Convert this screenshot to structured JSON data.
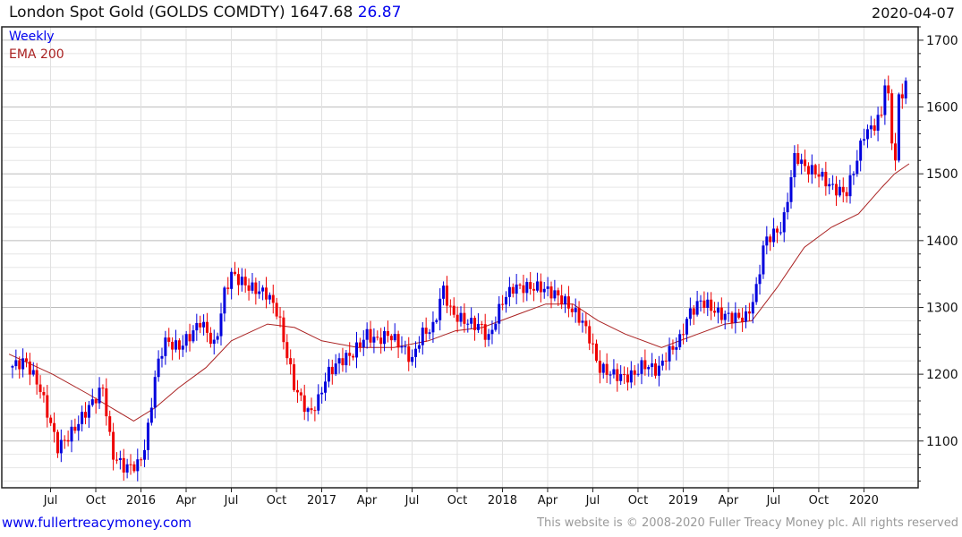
{
  "header": {
    "title": "London Spot Gold (GOLDS COMDTY) 1647.68",
    "change": "26.87",
    "date": "2020-04-07"
  },
  "footer": {
    "link": "www.fullertreacymoney.com",
    "copyright": "This website is © 2008-2020 Fuller Treacy Money plc. All rights reserved"
  },
  "colors": {
    "up": "#0000dd",
    "down": "#ee0000",
    "ema": "#aa2222",
    "legend_weekly": "#0000ee"
  },
  "chart_data": {
    "type": "candlestick",
    "title": "London Spot Gold (GOLDS COMDTY)",
    "legend": [
      "Weekly",
      "EMA 200"
    ],
    "legend_placement": "top-left",
    "xlim": [
      2015.23,
      2020.3
    ],
    "ylim": [
      1030,
      1720
    ],
    "yticks": [
      1100,
      1200,
      1300,
      1400,
      1500,
      1600,
      1700
    ],
    "xticks": [
      {
        "v": 2015.5,
        "label": "Jul"
      },
      {
        "v": 2015.75,
        "label": "Oct"
      },
      {
        "v": 2016,
        "label": "2016"
      },
      {
        "v": 2016.25,
        "label": "Apr"
      },
      {
        "v": 2016.5,
        "label": "Jul"
      },
      {
        "v": 2016.75,
        "label": "Oct"
      },
      {
        "v": 2017,
        "label": "2017"
      },
      {
        "v": 2017.25,
        "label": "Apr"
      },
      {
        "v": 2017.5,
        "label": "Jul"
      },
      {
        "v": 2017.75,
        "label": "Oct"
      },
      {
        "v": 2018,
        "label": "2018"
      },
      {
        "v": 2018.25,
        "label": "Apr"
      },
      {
        "v": 2018.5,
        "label": "Jul"
      },
      {
        "v": 2018.75,
        "label": "Oct"
      },
      {
        "v": 2019,
        "label": "2019"
      },
      {
        "v": 2019.25,
        "label": "Apr"
      },
      {
        "v": 2019.5,
        "label": "Jul"
      },
      {
        "v": 2019.75,
        "label": "Oct"
      },
      {
        "v": 2020,
        "label": "2020"
      }
    ],
    "close_path": [
      [
        2015.27,
        1210
      ],
      [
        2015.36,
        1220
      ],
      [
        2015.44,
        1180
      ],
      [
        2015.54,
        1090
      ],
      [
        2015.61,
        1110
      ],
      [
        2015.71,
        1150
      ],
      [
        2015.79,
        1180
      ],
      [
        2015.84,
        1080
      ],
      [
        2015.91,
        1060
      ],
      [
        2015.99,
        1065
      ],
      [
        2016.03,
        1100
      ],
      [
        2016.08,
        1200
      ],
      [
        2016.13,
        1250
      ],
      [
        2016.21,
        1240
      ],
      [
        2016.28,
        1260
      ],
      [
        2016.33,
        1280
      ],
      [
        2016.41,
        1240
      ],
      [
        2016.46,
        1320
      ],
      [
        2016.5,
        1350
      ],
      [
        2016.6,
        1330
      ],
      [
        2016.7,
        1320
      ],
      [
        2016.76,
        1290
      ],
      [
        2016.79,
        1250
      ],
      [
        2016.85,
        1180
      ],
      [
        2016.93,
        1140
      ],
      [
        2016.98,
        1160
      ],
      [
        2017.03,
        1200
      ],
      [
        2017.1,
        1220
      ],
      [
        2017.17,
        1230
      ],
      [
        2017.25,
        1260
      ],
      [
        2017.3,
        1250
      ],
      [
        2017.37,
        1260
      ],
      [
        2017.45,
        1240
      ],
      [
        2017.5,
        1220
      ],
      [
        2017.55,
        1260
      ],
      [
        2017.62,
        1270
      ],
      [
        2017.67,
        1330
      ],
      [
        2017.72,
        1290
      ],
      [
        2017.79,
        1280
      ],
      [
        2017.89,
        1270
      ],
      [
        2017.92,
        1250
      ],
      [
        2018.0,
        1310
      ],
      [
        2018.06,
        1330
      ],
      [
        2018.14,
        1330
      ],
      [
        2018.21,
        1330
      ],
      [
        2018.29,
        1320
      ],
      [
        2018.34,
        1310
      ],
      [
        2018.44,
        1280
      ],
      [
        2018.49,
        1250
      ],
      [
        2018.53,
        1210
      ],
      [
        2018.61,
        1200
      ],
      [
        2018.68,
        1195
      ],
      [
        2018.73,
        1200
      ],
      [
        2018.78,
        1215
      ],
      [
        2018.86,
        1205
      ],
      [
        2018.91,
        1230
      ],
      [
        2018.98,
        1250
      ],
      [
        2019.03,
        1290
      ],
      [
        2019.1,
        1310
      ],
      [
        2019.15,
        1300
      ],
      [
        2019.2,
        1290
      ],
      [
        2019.28,
        1285
      ],
      [
        2019.35,
        1285
      ],
      [
        2019.4,
        1320
      ],
      [
        2019.45,
        1400
      ],
      [
        2019.5,
        1410
      ],
      [
        2019.55,
        1420
      ],
      [
        2019.6,
        1500
      ],
      [
        2019.62,
        1530
      ],
      [
        2019.67,
        1510
      ],
      [
        2019.75,
        1500
      ],
      [
        2019.82,
        1480
      ],
      [
        2019.9,
        1470
      ],
      [
        2019.95,
        1510
      ],
      [
        2020.0,
        1560
      ],
      [
        2020.05,
        1570
      ],
      [
        2020.1,
        1590
      ],
      [
        2020.12,
        1650
      ],
      [
        2020.14,
        1600
      ],
      [
        2020.17,
        1500
      ],
      [
        2020.19,
        1610
      ],
      [
        2020.21,
        1620
      ],
      [
        2020.25,
        1648
      ]
    ],
    "ema200": [
      [
        2015.27,
        1230
      ],
      [
        2015.51,
        1200
      ],
      [
        2015.71,
        1170
      ],
      [
        2015.96,
        1130
      ],
      [
        2016.08,
        1150
      ],
      [
        2016.21,
        1180
      ],
      [
        2016.36,
        1210
      ],
      [
        2016.5,
        1250
      ],
      [
        2016.7,
        1275
      ],
      [
        2016.85,
        1270
      ],
      [
        2017.0,
        1250
      ],
      [
        2017.2,
        1240
      ],
      [
        2017.4,
        1240
      ],
      [
        2017.59,
        1250
      ],
      [
        2017.74,
        1265
      ],
      [
        2017.89,
        1270
      ],
      [
        2018.09,
        1290
      ],
      [
        2018.24,
        1305
      ],
      [
        2018.39,
        1305
      ],
      [
        2018.53,
        1280
      ],
      [
        2018.68,
        1260
      ],
      [
        2018.88,
        1240
      ],
      [
        2019.08,
        1260
      ],
      [
        2019.23,
        1275
      ],
      [
        2019.38,
        1280
      ],
      [
        2019.52,
        1330
      ],
      [
        2019.67,
        1390
      ],
      [
        2019.82,
        1420
      ],
      [
        2019.97,
        1440
      ],
      [
        2020.1,
        1480
      ],
      [
        2020.17,
        1500
      ],
      [
        2020.25,
        1515
      ]
    ]
  }
}
